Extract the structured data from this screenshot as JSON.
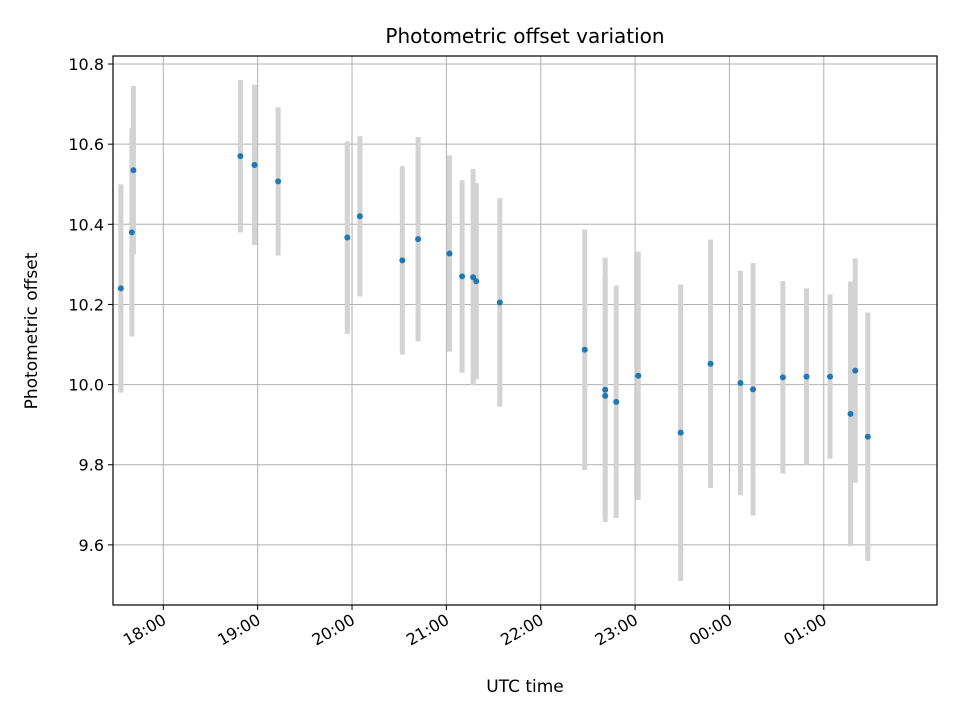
{
  "chart_data": {
    "type": "scatter",
    "title": "Photometric offset variation",
    "xlabel": "UTC time",
    "ylabel": "Photometric offset",
    "grid": true,
    "xlim": [
      "17:28",
      "26:12"
    ],
    "ylim": [
      9.45,
      10.82
    ],
    "x_ticks": [
      {
        "value": "18:00",
        "label": "18:00"
      },
      {
        "value": "19:00",
        "label": "19:00"
      },
      {
        "value": "20:00",
        "label": "20:00"
      },
      {
        "value": "21:00",
        "label": "21:00"
      },
      {
        "value": "22:00",
        "label": "22:00"
      },
      {
        "value": "23:00",
        "label": "23:00"
      },
      {
        "value": "24:00",
        "label": "00:00"
      },
      {
        "value": "25:00",
        "label": "01:00"
      }
    ],
    "y_ticks": [
      {
        "value": 9.6,
        "label": "9.6"
      },
      {
        "value": 9.8,
        "label": "9.8"
      },
      {
        "value": 10.0,
        "label": "10.0"
      },
      {
        "value": 10.2,
        "label": "10.2"
      },
      {
        "value": 10.4,
        "label": "10.4"
      },
      {
        "value": 10.6,
        "label": "10.6"
      },
      {
        "value": 10.8,
        "label": "10.8"
      }
    ],
    "colors": {
      "point": "#1f77b4",
      "errorbar": "#d3d3d3",
      "grid": "#b0b0b0"
    },
    "series": [
      {
        "points": [
          {
            "t": "17:33",
            "y": 10.24,
            "err": 0.26
          },
          {
            "t": "17:40",
            "y": 10.38,
            "err": 0.26
          },
          {
            "t": "17:41",
            "y": 10.535,
            "err": 0.21
          },
          {
            "t": "18:49",
            "y": 10.57,
            "err": 0.19
          },
          {
            "t": "18:58",
            "y": 10.548,
            "err": 0.2
          },
          {
            "t": "19:13",
            "y": 10.507,
            "err": 0.185
          },
          {
            "t": "19:57",
            "y": 10.367,
            "err": 0.24
          },
          {
            "t": "20:05",
            "y": 10.42,
            "err": 0.2
          },
          {
            "t": "20:32",
            "y": 10.31,
            "err": 0.235
          },
          {
            "t": "20:42",
            "y": 10.363,
            "err": 0.255
          },
          {
            "t": "21:02",
            "y": 10.327,
            "err": 0.245
          },
          {
            "t": "21:10",
            "y": 10.27,
            "err": 0.24
          },
          {
            "t": "21:17",
            "y": 10.268,
            "err": 0.27
          },
          {
            "t": "21:19",
            "y": 10.258,
            "err": 0.245
          },
          {
            "t": "21:34",
            "y": 10.205,
            "err": 0.26
          },
          {
            "t": "22:28",
            "y": 10.087,
            "err": 0.3
          },
          {
            "t": "22:41",
            "y": 9.987,
            "err": 0.33
          },
          {
            "t": "22:41",
            "y": 9.972,
            "err": 0.3
          },
          {
            "t": "22:48",
            "y": 9.957,
            "err": 0.29
          },
          {
            "t": "23:02",
            "y": 10.022,
            "err": 0.31
          },
          {
            "t": "23:29",
            "y": 9.88,
            "err": 0.37
          },
          {
            "t": "23:48",
            "y": 10.052,
            "err": 0.31
          },
          {
            "t": "24:07",
            "y": 10.004,
            "err": 0.28
          },
          {
            "t": "24:15",
            "y": 9.988,
            "err": 0.315
          },
          {
            "t": "24:34",
            "y": 10.018,
            "err": 0.24
          },
          {
            "t": "24:49",
            "y": 10.02,
            "err": 0.22
          },
          {
            "t": "25:04",
            "y": 10.02,
            "err": 0.205
          },
          {
            "t": "25:17",
            "y": 9.927,
            "err": 0.33
          },
          {
            "t": "25:20",
            "y": 10.035,
            "err": 0.28
          },
          {
            "t": "25:28",
            "y": 9.87,
            "err": 0.31
          }
        ]
      }
    ]
  }
}
